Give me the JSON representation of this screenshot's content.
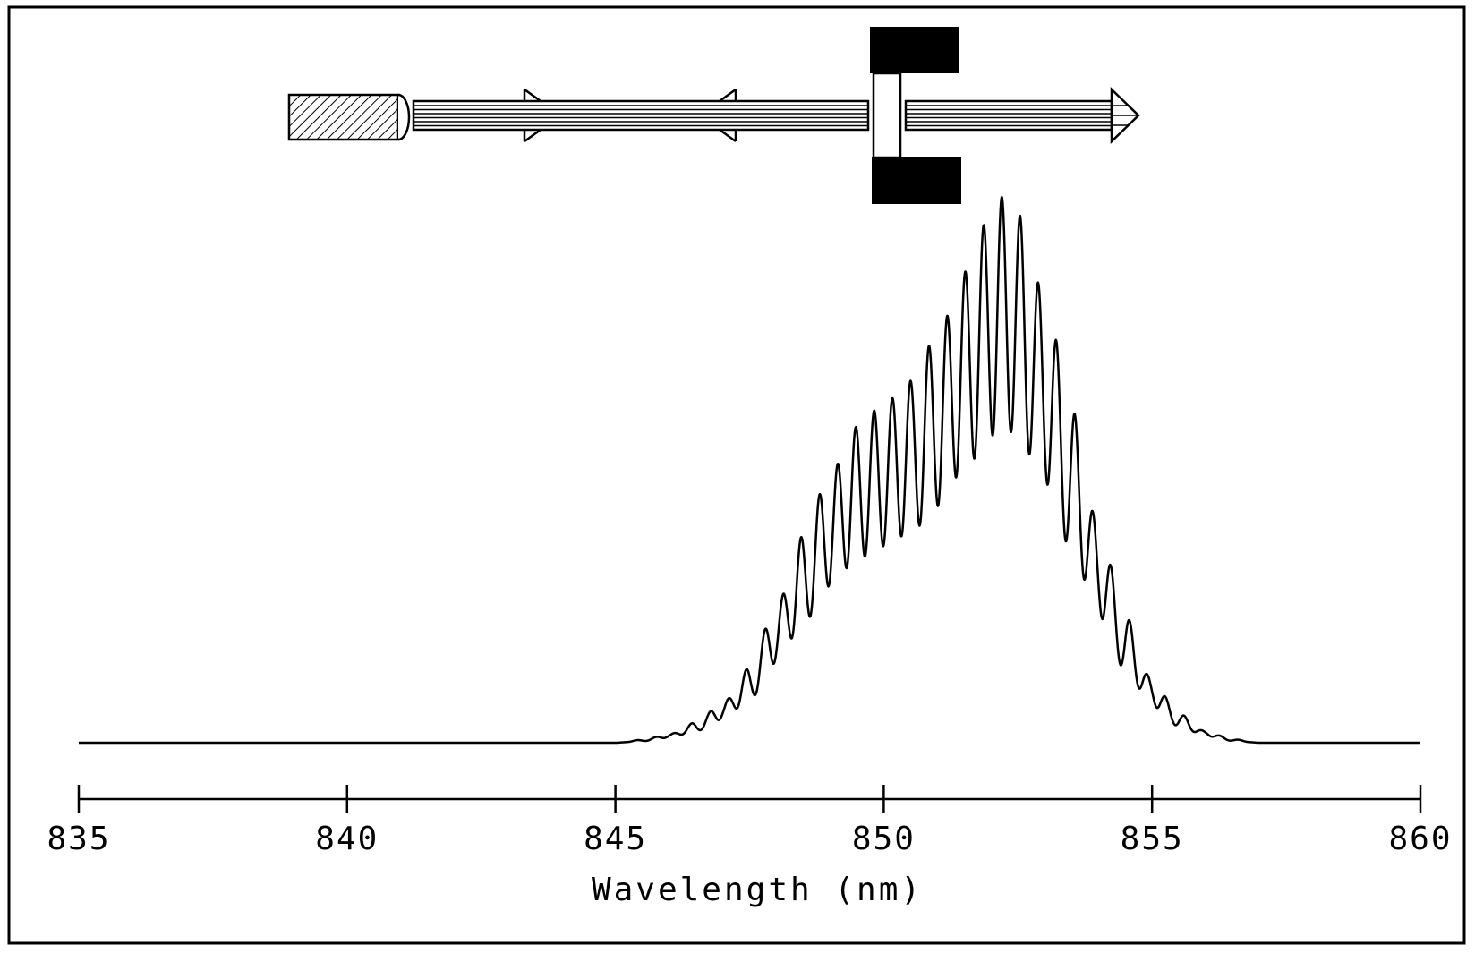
{
  "colors": {
    "ink": "#000000",
    "paper": "#ffffff"
  },
  "chart_data": {
    "type": "line",
    "title": "",
    "xlabel": "Wavelength (nm)",
    "ylabel": "",
    "xlim": [
      835,
      860
    ],
    "ylim": [
      0,
      1
    ],
    "x_ticks": [
      835,
      840,
      845,
      850,
      855,
      860
    ],
    "x_tick_labels": [
      "835",
      "840",
      "845",
      "850",
      "855",
      "860"
    ],
    "grid": false,
    "legend": "none",
    "series": [
      {
        "description_of_shape": "broad gain envelope with Fabry-Perot fringe modulation",
        "points": [
          [
            835.0,
            0.0
          ],
          [
            845.0,
            0.0
          ],
          [
            845.5,
            0.005
          ],
          [
            846.0,
            0.015
          ],
          [
            846.5,
            0.035
          ],
          [
            847.0,
            0.07
          ],
          [
            847.5,
            0.13
          ],
          [
            848.0,
            0.24
          ],
          [
            848.5,
            0.36
          ],
          [
            849.0,
            0.47
          ],
          [
            849.5,
            0.55
          ],
          [
            850.0,
            0.59
          ],
          [
            850.5,
            0.63
          ],
          [
            851.0,
            0.71
          ],
          [
            851.5,
            0.82
          ],
          [
            852.0,
            0.92
          ],
          [
            852.2,
            0.95
          ],
          [
            852.5,
            0.92
          ],
          [
            853.0,
            0.78
          ],
          [
            853.5,
            0.58
          ],
          [
            854.0,
            0.38
          ],
          [
            854.5,
            0.22
          ],
          [
            855.0,
            0.11
          ],
          [
            855.5,
            0.05
          ],
          [
            856.0,
            0.02
          ],
          [
            856.5,
            0.006
          ],
          [
            857.0,
            0.0
          ],
          [
            860.0,
            0.0
          ]
        ],
        "fringe_period_nm": 0.34,
        "fringe_modulation_depth": 0.42
      }
    ],
    "inset": {
      "kind": "optical schematic",
      "components": [
        "laser-diode",
        "fiber-beam",
        "forward-arrow-marker",
        "backward-arrow-marker",
        "etalon-cavity",
        "output-beam-arrow"
      ]
    }
  }
}
